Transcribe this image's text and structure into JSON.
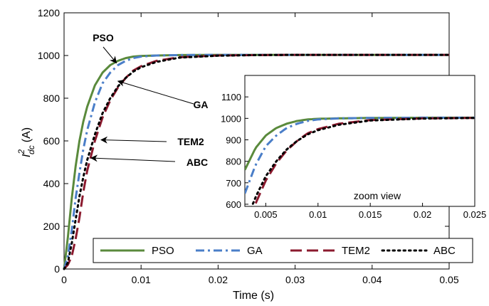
{
  "chart_data": [
    {
      "type": "line",
      "title": "",
      "xlabel": "Time (s)",
      "ylabel_main": "I",
      "ylabel_sup": "2",
      "ylabel_sub": "dc",
      "ylabel_unit": "(A)",
      "xlim": [
        0,
        0.05
      ],
      "ylim": [
        0,
        1200
      ],
      "xticks": [
        0,
        0.01,
        0.02,
        0.03,
        0.04,
        0.05
      ],
      "xtick_labels": [
        "0",
        "0.01",
        "0.02",
        "0.03",
        "0.04",
        "0.05"
      ],
      "yticks": [
        0,
        200,
        400,
        600,
        800,
        1000,
        1200
      ],
      "ytick_labels": [
        "0",
        "200",
        "400",
        "600",
        "800",
        "1000",
        "1200"
      ],
      "grid": false,
      "legend_position": "bottom",
      "series": [
        {
          "name": "PSO",
          "color": "#5a8a3c",
          "style": "solid",
          "x": [
            0,
            0.0005,
            0.001,
            0.0015,
            0.002,
            0.0025,
            0.003,
            0.004,
            0.005,
            0.006,
            0.007,
            0.008,
            0.009,
            0.01,
            0.012,
            0.015,
            0.02,
            0.03,
            0.04,
            0.05
          ],
          "y": [
            0,
            150,
            330,
            480,
            600,
            690,
            760,
            860,
            920,
            955,
            975,
            988,
            995,
            998,
            1000,
            1002,
            1003,
            1003,
            1003,
            1003
          ]
        },
        {
          "name": "GA",
          "color": "#4a7ec8",
          "style": "dashdot",
          "x": [
            0,
            0.0005,
            0.001,
            0.0015,
            0.002,
            0.0025,
            0.003,
            0.004,
            0.005,
            0.006,
            0.007,
            0.008,
            0.009,
            0.01,
            0.012,
            0.015,
            0.02,
            0.03,
            0.04,
            0.05
          ],
          "y": [
            0,
            60,
            180,
            330,
            450,
            560,
            650,
            780,
            870,
            920,
            955,
            975,
            988,
            995,
            1000,
            1002,
            1003,
            1003,
            1003,
            1003
          ]
        },
        {
          "name": "TEM2",
          "color": "#8b1a2e",
          "style": "dashed",
          "x": [
            0,
            0.0005,
            0.001,
            0.0015,
            0.002,
            0.0025,
            0.003,
            0.004,
            0.005,
            0.006,
            0.007,
            0.008,
            0.009,
            0.01,
            0.012,
            0.015,
            0.02,
            0.025,
            0.03,
            0.04,
            0.05
          ],
          "y": [
            0,
            20,
            60,
            140,
            240,
            360,
            460,
            600,
            710,
            790,
            850,
            895,
            930,
            950,
            975,
            992,
            1000,
            1002,
            1003,
            1003,
            1003
          ]
        },
        {
          "name": "ABC",
          "color": "#000000",
          "style": "dotted",
          "x": [
            0,
            0.0005,
            0.001,
            0.0015,
            0.002,
            0.0025,
            0.003,
            0.004,
            0.005,
            0.006,
            0.007,
            0.008,
            0.009,
            0.01,
            0.012,
            0.015,
            0.02,
            0.025,
            0.03,
            0.04,
            0.05
          ],
          "y": [
            0,
            30,
            120,
            230,
            340,
            430,
            510,
            630,
            730,
            800,
            855,
            895,
            925,
            945,
            970,
            990,
            999,
            1002,
            1003,
            1003,
            1003
          ]
        }
      ],
      "annotations": [
        {
          "text": "PSO",
          "x": 0.0068,
          "y": 965
        },
        {
          "text": "GA",
          "x": 0.007,
          "y": 880
        },
        {
          "text": "TEM2",
          "x": 0.0048,
          "y": 605
        },
        {
          "text": "ABC",
          "x": 0.0035,
          "y": 520
        }
      ]
    },
    {
      "type": "line",
      "title": "zoom view",
      "xlim": [
        0.003,
        0.025
      ],
      "ylim": [
        590,
        1200
      ],
      "xticks": [
        0.005,
        0.01,
        0.015,
        0.02,
        0.025
      ],
      "xtick_labels": [
        "0.005",
        "0.01",
        "0.015",
        "0.02",
        "0.025"
      ],
      "yticks": [
        600,
        700,
        800,
        900,
        1000,
        1100
      ],
      "ytick_labels": [
        "600",
        "700",
        "800",
        "900",
        "1000",
        "1100"
      ],
      "grid": false
    }
  ]
}
